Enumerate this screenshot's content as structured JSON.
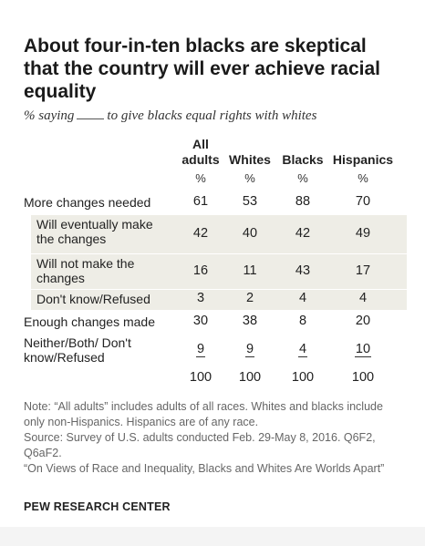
{
  "chart_data": {
    "type": "table",
    "title": "About four-in-ten blacks are skeptical that the country will ever achieve racial equality",
    "subtitle_before": "% saying",
    "subtitle_after": "to give blacks equal rights with whites",
    "columns": [
      {
        "name": "All adults",
        "unit": "%"
      },
      {
        "name": "Whites",
        "unit": "%"
      },
      {
        "name": "Blacks",
        "unit": "%"
      },
      {
        "name": "Hispanics",
        "unit": "%"
      }
    ],
    "rows": [
      {
        "label": "More changes needed",
        "values": [
          "61",
          "53",
          "88",
          "70"
        ],
        "indent": false,
        "underline": false
      },
      {
        "label": "Will eventually make the changes",
        "values": [
          "42",
          "40",
          "42",
          "49"
        ],
        "indent": true,
        "underline": false
      },
      {
        "label": "Will not make the changes",
        "values": [
          "16",
          "11",
          "43",
          "17"
        ],
        "indent": true,
        "underline": false
      },
      {
        "label": "Don't know/Refused",
        "values": [
          "3",
          "2",
          "4",
          "4"
        ],
        "indent": true,
        "underline": false
      },
      {
        "label": "Enough changes made",
        "values": [
          "30",
          "38",
          "8",
          "20"
        ],
        "indent": false,
        "underline": false
      },
      {
        "label": "Neither/Both/ Don't know/Refused",
        "values": [
          "9",
          "9",
          "4",
          "10"
        ],
        "indent": false,
        "underline": true
      },
      {
        "label": "",
        "values": [
          "100",
          "100",
          "100",
          "100"
        ],
        "indent": false,
        "underline": false
      }
    ]
  },
  "notes": [
    "Note: “All adults” includes adults of all races. Whites and blacks include only non-Hispanics. Hispanics are of any race.",
    "Source: Survey of U.S. adults conducted Feb. 29-May 8, 2016. Q6F2, Q6aF2.",
    "“On Views of Race and Inequality, Blacks and Whites Are Worlds Apart”"
  ],
  "source_org": "PEW RESEARCH CENTER",
  "colors": {
    "shade": "#eeede6",
    "text": "#222222",
    "note": "#666666"
  }
}
